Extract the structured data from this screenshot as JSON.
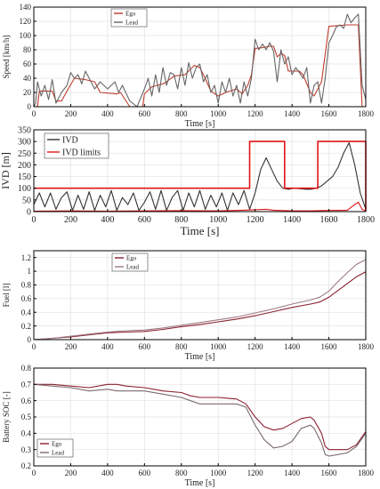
{
  "chart_data": [
    {
      "type": "line",
      "ylabel": "Speed [km/h]",
      "xlabel": "Time [s]",
      "xlim": [
        0,
        1800
      ],
      "ylim": [
        0,
        140
      ],
      "xticks": [
        0,
        200,
        400,
        600,
        800,
        1000,
        1200,
        1400,
        1600,
        1800
      ],
      "yticks": [
        0,
        20,
        40,
        60,
        80,
        100,
        120,
        140
      ],
      "grid": true,
      "legend_position": "top-center",
      "series": [
        {
          "name": "Ego",
          "color": "#c0392b",
          "x": [
            0,
            20,
            30,
            100,
            120,
            150,
            180,
            220,
            280,
            330,
            360,
            450,
            470,
            520,
            590,
            600,
            640,
            700,
            720,
            760,
            820,
            870,
            900,
            920,
            960,
            1000,
            1040,
            1100,
            1130,
            1160,
            1180,
            1200,
            1240,
            1280,
            1300,
            1320,
            1340,
            1360,
            1380,
            1420,
            1440,
            1460,
            1500,
            1520,
            1540,
            1560,
            1600,
            1700,
            1760,
            1780,
            1800
          ],
          "y": [
            0,
            0,
            22,
            22,
            8,
            8,
            22,
            40,
            38,
            35,
            20,
            18,
            20,
            0,
            0,
            18,
            28,
            32,
            35,
            43,
            45,
            58,
            55,
            45,
            22,
            15,
            20,
            25,
            18,
            30,
            45,
            82,
            83,
            85,
            85,
            70,
            75,
            72,
            50,
            50,
            50,
            45,
            20,
            15,
            25,
            35,
            113,
            115,
            115,
            0,
            0
          ]
        },
        {
          "name": "Lead",
          "color": "#666666",
          "x": [
            0,
            10,
            20,
            40,
            60,
            80,
            100,
            120,
            150,
            180,
            200,
            220,
            240,
            260,
            280,
            300,
            330,
            360,
            400,
            440,
            460,
            480,
            520,
            560,
            600,
            620,
            640,
            660,
            680,
            700,
            720,
            740,
            760,
            780,
            800,
            820,
            840,
            860,
            880,
            900,
            920,
            940,
            960,
            980,
            1000,
            1020,
            1040,
            1060,
            1080,
            1100,
            1120,
            1140,
            1160,
            1180,
            1200,
            1220,
            1240,
            1260,
            1280,
            1300,
            1320,
            1340,
            1360,
            1380,
            1400,
            1420,
            1440,
            1460,
            1480,
            1500,
            1520,
            1540,
            1560,
            1580,
            1600,
            1620,
            1640,
            1660,
            1680,
            1700,
            1720,
            1740,
            1760,
            1780,
            1800
          ],
          "y": [
            0,
            5,
            35,
            15,
            30,
            10,
            38,
            5,
            20,
            30,
            48,
            40,
            45,
            32,
            50,
            40,
            25,
            35,
            25,
            35,
            20,
            30,
            8,
            0,
            25,
            40,
            15,
            45,
            20,
            55,
            30,
            48,
            45,
            25,
            55,
            30,
            62,
            40,
            55,
            60,
            35,
            45,
            20,
            30,
            5,
            35,
            20,
            40,
            15,
            30,
            5,
            35,
            15,
            40,
            95,
            80,
            88,
            80,
            90,
            78,
            35,
            80,
            60,
            70,
            45,
            55,
            48,
            40,
            55,
            5,
            30,
            35,
            5,
            40,
            90,
            100,
            112,
            115,
            110,
            130,
            118,
            125,
            130,
            30,
            10
          ]
        }
      ]
    },
    {
      "type": "line",
      "ylabel": "IVD [m]",
      "xlabel": "Time [s]",
      "xlim": [
        0,
        1800
      ],
      "ylim": [
        0,
        350
      ],
      "xticks": [
        0,
        200,
        400,
        600,
        800,
        1000,
        1200,
        1400,
        1600,
        1800
      ],
      "yticks": [
        0,
        50,
        100,
        150,
        200,
        250,
        300,
        350
      ],
      "grid": true,
      "legend_position": "top-left",
      "series": [
        {
          "name": "IVD",
          "color": "#333333",
          "x": [
            0,
            30,
            60,
            90,
            120,
            150,
            180,
            210,
            240,
            270,
            300,
            330,
            360,
            390,
            420,
            450,
            480,
            510,
            540,
            570,
            600,
            630,
            660,
            690,
            720,
            750,
            780,
            810,
            840,
            870,
            900,
            930,
            960,
            990,
            1020,
            1050,
            1080,
            1110,
            1140,
            1170,
            1200,
            1230,
            1260,
            1290,
            1320,
            1350,
            1380,
            1410,
            1440,
            1470,
            1500,
            1530,
            1560,
            1590,
            1620,
            1650,
            1680,
            1710,
            1740,
            1770,
            1800
          ],
          "y": [
            30,
            80,
            20,
            80,
            10,
            60,
            85,
            5,
            70,
            10,
            85,
            5,
            70,
            20,
            90,
            5,
            60,
            30,
            80,
            5,
            40,
            85,
            10,
            90,
            5,
            60,
            90,
            5,
            80,
            20,
            90,
            10,
            70,
            20,
            80,
            5,
            80,
            30,
            90,
            10,
            80,
            180,
            230,
            180,
            130,
            100,
            95,
            100,
            98,
            96,
            95,
            100,
            110,
            130,
            150,
            190,
            250,
            295,
            200,
            80,
            10
          ]
        },
        {
          "name": "IVD limits",
          "color": "#e01515",
          "x": [
            0,
            1170,
            1170,
            1360,
            1360,
            1540,
            1540,
            1800,
            1800
          ],
          "y": [
            100,
            100,
            300,
            300,
            100,
            100,
            300,
            300,
            0
          ]
        },
        {
          "name": "",
          "color": "#e01515",
          "x": [
            0,
            200,
            400,
            600,
            800,
            1000,
            1100,
            1200,
            1260,
            1300,
            1400,
            1500,
            1600,
            1700,
            1740,
            1760,
            1780,
            1800
          ],
          "y": [
            2,
            3,
            2,
            3,
            4,
            3,
            5,
            8,
            10,
            6,
            3,
            3,
            5,
            6,
            30,
            40,
            10,
            3
          ]
        }
      ]
    },
    {
      "type": "line",
      "ylabel": "Fuel [l]",
      "xlabel": "Time [s]",
      "xlim": [
        0,
        1800
      ],
      "ylim": [
        0,
        1.3
      ],
      "xticks": [
        0,
        200,
        400,
        600,
        800,
        1000,
        1200,
        1400,
        1600,
        1800
      ],
      "yticks": [
        0,
        0.2,
        0.4,
        0.6,
        0.8,
        1,
        1.2
      ],
      "grid": true,
      "legend_position": "top-center",
      "series": [
        {
          "name": "Ego",
          "color": "#8b2030",
          "x": [
            0,
            100,
            200,
            300,
            400,
            500,
            600,
            700,
            800,
            900,
            1000,
            1100,
            1200,
            1300,
            1400,
            1500,
            1550,
            1600,
            1650,
            1700,
            1750,
            1800
          ],
          "y": [
            0,
            0.02,
            0.04,
            0.07,
            0.1,
            0.11,
            0.12,
            0.15,
            0.19,
            0.22,
            0.26,
            0.3,
            0.35,
            0.41,
            0.47,
            0.52,
            0.55,
            0.62,
            0.72,
            0.82,
            0.92,
            0.99
          ]
        },
        {
          "name": "Lead",
          "color": "#9c7a84",
          "x": [
            0,
            100,
            200,
            300,
            400,
            500,
            600,
            700,
            800,
            900,
            1000,
            1100,
            1200,
            1300,
            1400,
            1500,
            1550,
            1600,
            1650,
            1700,
            1750,
            1800
          ],
          "y": [
            0,
            0.02,
            0.05,
            0.08,
            0.11,
            0.13,
            0.14,
            0.17,
            0.21,
            0.25,
            0.29,
            0.33,
            0.39,
            0.45,
            0.52,
            0.58,
            0.62,
            0.71,
            0.85,
            0.98,
            1.1,
            1.17
          ]
        }
      ]
    },
    {
      "type": "line",
      "ylabel": "Battery SOC [-]",
      "xlabel": "Time [s]",
      "xlim": [
        0,
        1800
      ],
      "ylim": [
        0.2,
        0.8
      ],
      "xticks": [
        0,
        200,
        400,
        600,
        800,
        1000,
        1200,
        1400,
        1600,
        1800
      ],
      "yticks": [
        0.2,
        0.3,
        0.4,
        0.5,
        0.6,
        0.7,
        0.8
      ],
      "grid": true,
      "legend_position": "bottom-left",
      "series": [
        {
          "name": "Ego",
          "color": "#8b2030",
          "x": [
            0,
            100,
            200,
            300,
            400,
            450,
            500,
            600,
            700,
            800,
            850,
            900,
            1000,
            1100,
            1150,
            1200,
            1250,
            1300,
            1350,
            1400,
            1450,
            1500,
            1520,
            1560,
            1580,
            1600,
            1650,
            1700,
            1750,
            1800
          ],
          "y": [
            0.7,
            0.7,
            0.69,
            0.68,
            0.7,
            0.7,
            0.69,
            0.68,
            0.66,
            0.65,
            0.63,
            0.62,
            0.62,
            0.61,
            0.58,
            0.5,
            0.44,
            0.42,
            0.43,
            0.46,
            0.49,
            0.5,
            0.48,
            0.4,
            0.32,
            0.3,
            0.3,
            0.3,
            0.33,
            0.41
          ]
        },
        {
          "name": "Lead",
          "color": "#7a6a70",
          "x": [
            0,
            100,
            200,
            300,
            400,
            450,
            500,
            600,
            700,
            800,
            850,
            900,
            1000,
            1100,
            1150,
            1200,
            1250,
            1300,
            1350,
            1400,
            1450,
            1500,
            1520,
            1560,
            1580,
            1600,
            1650,
            1700,
            1750,
            1800
          ],
          "y": [
            0.7,
            0.69,
            0.68,
            0.66,
            0.67,
            0.66,
            0.66,
            0.66,
            0.64,
            0.62,
            0.6,
            0.58,
            0.58,
            0.58,
            0.56,
            0.45,
            0.36,
            0.31,
            0.32,
            0.35,
            0.43,
            0.45,
            0.43,
            0.34,
            0.27,
            0.26,
            0.27,
            0.28,
            0.32,
            0.4
          ]
        }
      ]
    }
  ]
}
